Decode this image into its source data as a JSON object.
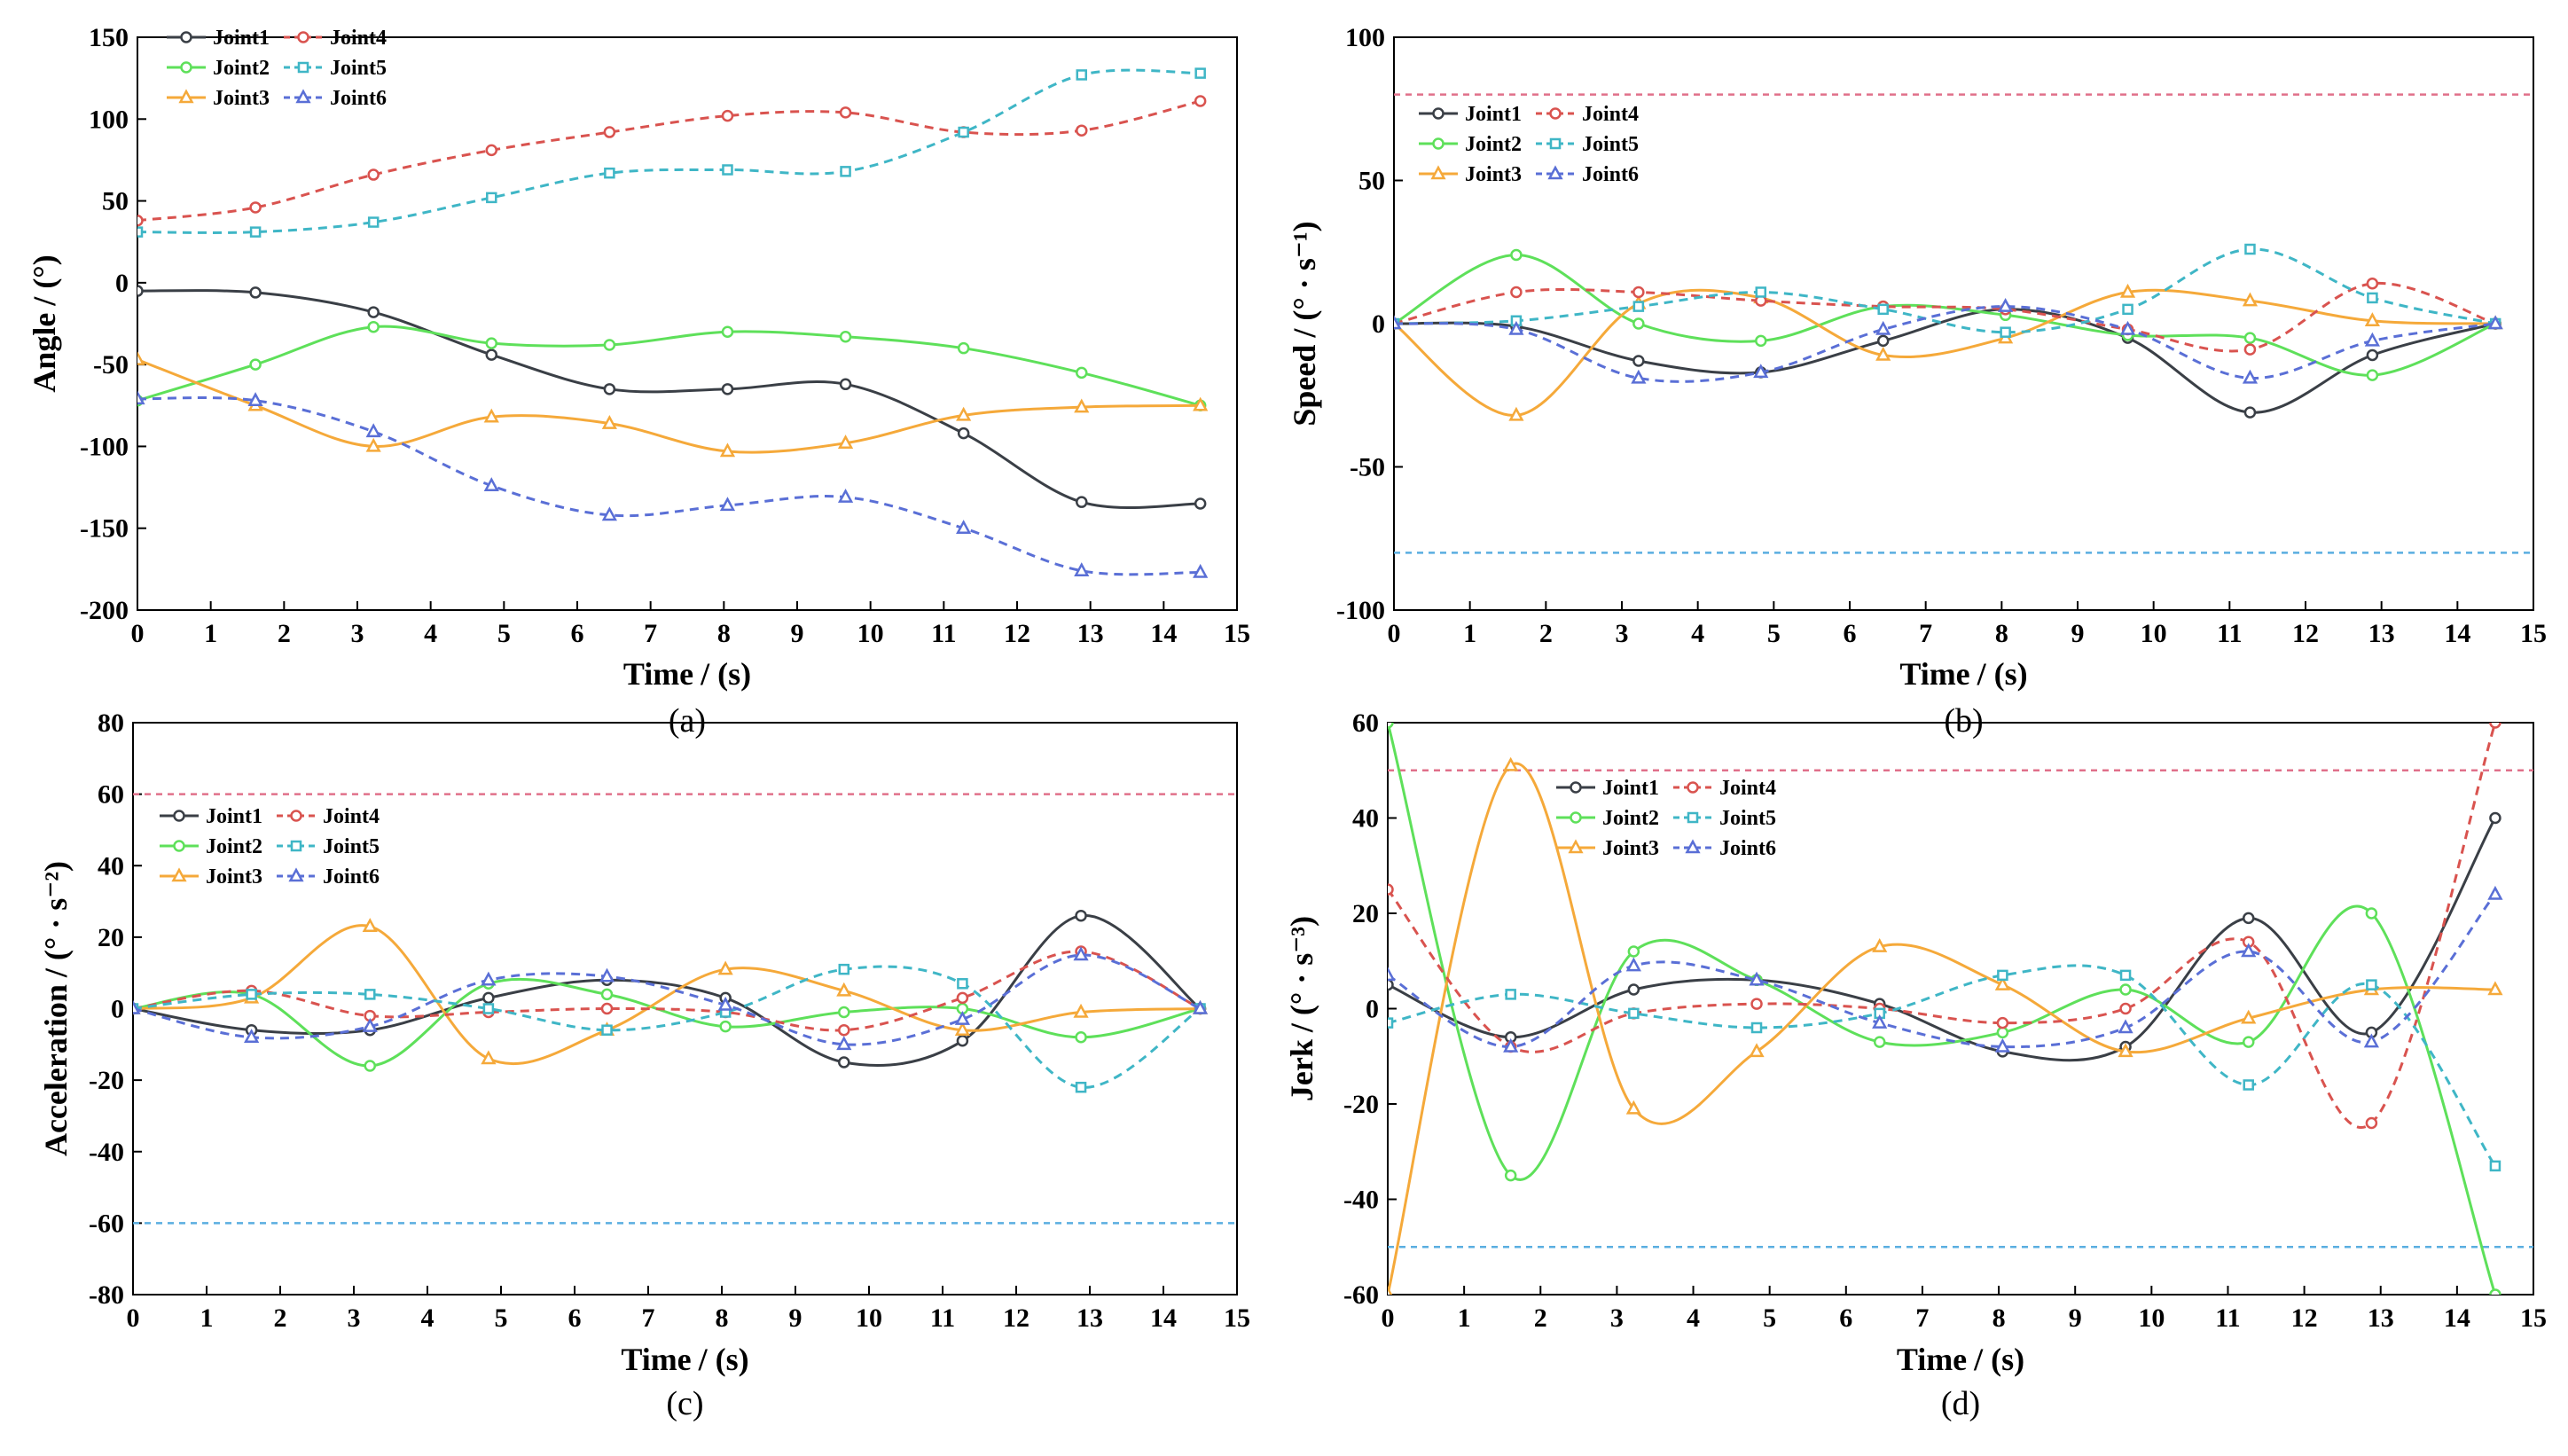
{
  "figure": {
    "panels": [
      "(a)",
      "(b)",
      "(c)",
      "(d)"
    ]
  },
  "series_styles": [
    {
      "name": "Joint1",
      "color": "#3a3f46",
      "dash": "none",
      "marker": "circle"
    },
    {
      "name": "Joint2",
      "color": "#5ee05a",
      "dash": "none",
      "marker": "circle"
    },
    {
      "name": "Joint3",
      "color": "#f5a93a",
      "dash": "none",
      "marker": "triangle"
    },
    {
      "name": "Joint4",
      "color": "#d9534f",
      "dash": "dashed",
      "marker": "circle"
    },
    {
      "name": "Joint5",
      "color": "#3fb6c6",
      "dash": "dashed",
      "marker": "square"
    },
    {
      "name": "Joint6",
      "color": "#5a6fd6",
      "dash": "dashed",
      "marker": "triangle"
    }
  ],
  "limit_colors": {
    "upper": "#e0708a",
    "lower": "#5aaee0"
  },
  "chart_data": [
    {
      "type": "line",
      "panel": "(a)",
      "title": "",
      "xlabel_main": "Time",
      "xlabel_unit": "/ (s)",
      "ylabel_main": "Angle",
      "ylabel_unit": "/ (°)",
      "xlim": [
        0,
        15
      ],
      "ylim": [
        -200,
        150
      ],
      "xticks": [
        "0",
        "1",
        "2",
        "3",
        "4",
        "5",
        "6",
        "7",
        "8",
        "9",
        "10",
        "11",
        "12",
        "13",
        "14",
        "15"
      ],
      "yticks": [
        "-200",
        "-150",
        "-100",
        "-50",
        "0",
        "50",
        "100",
        "150"
      ],
      "legend": "top-left",
      "limits": [],
      "x": [
        0,
        1.61,
        3.22,
        4.83,
        6.44,
        8.05,
        9.66,
        11.27,
        12.88,
        14.5
      ],
      "series": [
        {
          "name": "Joint1",
          "values": [
            -5,
            -6,
            -18,
            -44,
            -65,
            -65,
            -62,
            -92,
            -134,
            -135
          ]
        },
        {
          "name": "Joint2",
          "values": [
            -72,
            -50,
            -27,
            -37,
            -38,
            -30,
            -33,
            -40,
            -55,
            -75
          ]
        },
        {
          "name": "Joint3",
          "values": [
            -47,
            -75,
            -100,
            -82,
            -86,
            -103,
            -98,
            -81,
            -76,
            -75
          ]
        },
        {
          "name": "Joint4",
          "values": [
            38,
            46,
            66,
            81,
            92,
            102,
            104,
            92,
            93,
            111
          ]
        },
        {
          "name": "Joint5",
          "values": [
            31,
            31,
            37,
            52,
            67,
            69,
            68,
            92,
            127,
            128
          ]
        },
        {
          "name": "Joint6",
          "values": [
            -71,
            -72,
            -91,
            -124,
            -142,
            -136,
            -131,
            -150,
            -176,
            -177
          ]
        }
      ]
    },
    {
      "type": "line",
      "panel": "(b)",
      "title": "",
      "xlabel_main": "Time",
      "xlabel_unit": "/ (s)",
      "ylabel_main": "Speed",
      "ylabel_unit": "/ (° · s⁻¹)",
      "xlim": [
        0,
        15
      ],
      "ylim": [
        -100,
        100
      ],
      "xticks": [
        "0",
        "1",
        "2",
        "3",
        "4",
        "5",
        "6",
        "7",
        "8",
        "9",
        "10",
        "11",
        "12",
        "13",
        "14",
        "15"
      ],
      "yticks": [
        "-100",
        "-50",
        "0",
        "50",
        "100"
      ],
      "legend": "top-left",
      "limits": [
        80,
        -80
      ],
      "x": [
        0,
        1.61,
        3.22,
        4.83,
        6.44,
        8.05,
        9.66,
        11.27,
        12.88,
        14.5
      ],
      "series": [
        {
          "name": "Joint1",
          "values": [
            0,
            -1,
            -13,
            -17,
            -6,
            5,
            -5,
            -31,
            -11,
            0
          ]
        },
        {
          "name": "Joint2",
          "values": [
            0,
            24,
            0,
            -6,
            6,
            3,
            -4,
            -5,
            -18,
            0
          ]
        },
        {
          "name": "Joint3",
          "values": [
            0,
            -32,
            7,
            9,
            -11,
            -5,
            11,
            8,
            1,
            0
          ]
        },
        {
          "name": "Joint4",
          "values": [
            0,
            11,
            11,
            8,
            6,
            5,
            -2,
            -9,
            14,
            0
          ]
        },
        {
          "name": "Joint5",
          "values": [
            0,
            1,
            6,
            11,
            5,
            -3,
            5,
            26,
            9,
            0
          ]
        },
        {
          "name": "Joint6",
          "values": [
            0,
            -2,
            -19,
            -17,
            -2,
            6,
            -2,
            -19,
            -6,
            0
          ]
        }
      ]
    },
    {
      "type": "line",
      "panel": "(c)",
      "title": "",
      "xlabel_main": "Time",
      "xlabel_unit": "/ (s)",
      "ylabel_main": "Acceleration",
      "ylabel_unit": "/ (° · s⁻²)",
      "xlim": [
        0,
        15
      ],
      "ylim": [
        -80,
        80
      ],
      "xticks": [
        "0",
        "1",
        "2",
        "3",
        "4",
        "5",
        "6",
        "7",
        "8",
        "9",
        "10",
        "11",
        "12",
        "13",
        "14",
        "15"
      ],
      "yticks": [
        "-80",
        "-60",
        "-40",
        "-20",
        "0",
        "20",
        "40",
        "60",
        "80"
      ],
      "legend": "top-left",
      "limits": [
        60,
        -60
      ],
      "x": [
        0,
        1.61,
        3.22,
        4.83,
        6.44,
        8.05,
        9.66,
        11.27,
        12.88,
        14.5
      ],
      "series": [
        {
          "name": "Joint1",
          "values": [
            0,
            -6,
            -6,
            3,
            8,
            3,
            -15,
            -9,
            26,
            0
          ]
        },
        {
          "name": "Joint2",
          "values": [
            0,
            4,
            -16,
            7,
            4,
            -5,
            -1,
            0,
            -8,
            0
          ]
        },
        {
          "name": "Joint3",
          "values": [
            0,
            3,
            23,
            -14,
            -6,
            11,
            5,
            -6,
            -1,
            0
          ]
        },
        {
          "name": "Joint4",
          "values": [
            0,
            5,
            -2,
            -1,
            0,
            -1,
            -6,
            3,
            16,
            0
          ]
        },
        {
          "name": "Joint5",
          "values": [
            0,
            4,
            4,
            0,
            -6,
            -1,
            11,
            7,
            -22,
            0
          ]
        },
        {
          "name": "Joint6",
          "values": [
            0,
            -8,
            -5,
            8,
            9,
            1,
            -10,
            -3,
            15,
            0
          ]
        }
      ]
    },
    {
      "type": "line",
      "panel": "(d)",
      "title": "",
      "xlabel_main": "Time",
      "xlabel_unit": "/ (s)",
      "ylabel_main": "Jerk",
      "ylabel_unit": "/ (° · s⁻³)",
      "xlim": [
        0,
        15
      ],
      "ylim": [
        -60,
        60
      ],
      "xticks": [
        "0",
        "1",
        "2",
        "3",
        "4",
        "5",
        "6",
        "7",
        "8",
        "9",
        "10",
        "11",
        "12",
        "13",
        "14",
        "15"
      ],
      "yticks": [
        "-60",
        "-40",
        "-20",
        "0",
        "20",
        "40",
        "60"
      ],
      "legend": "top-center",
      "limits": [
        50,
        -50
      ],
      "x": [
        0,
        1.61,
        3.22,
        4.83,
        6.44,
        8.05,
        9.66,
        11.27,
        12.88,
        14.5
      ],
      "series": [
        {
          "name": "Joint1",
          "values": [
            5,
            -6,
            4,
            6,
            1,
            -9,
            -8,
            19,
            -5,
            40
          ]
        },
        {
          "name": "Joint2",
          "values": [
            60,
            -35,
            12,
            6,
            -7,
            -5,
            4,
            -7,
            20,
            -60
          ]
        },
        {
          "name": "Joint3",
          "values": [
            -60,
            51,
            -21,
            -9,
            13,
            5,
            -9,
            -2,
            4,
            4
          ]
        },
        {
          "name": "Joint4",
          "values": [
            25,
            -8,
            -1,
            1,
            0,
            -3,
            0,
            14,
            -24,
            60
          ]
        },
        {
          "name": "Joint5",
          "values": [
            -3,
            3,
            -1,
            -4,
            -1,
            7,
            7,
            -16,
            5,
            -33
          ]
        },
        {
          "name": "Joint6",
          "values": [
            7,
            -8,
            9,
            6,
            -3,
            -8,
            -4,
            12,
            -7,
            24
          ]
        }
      ]
    }
  ]
}
